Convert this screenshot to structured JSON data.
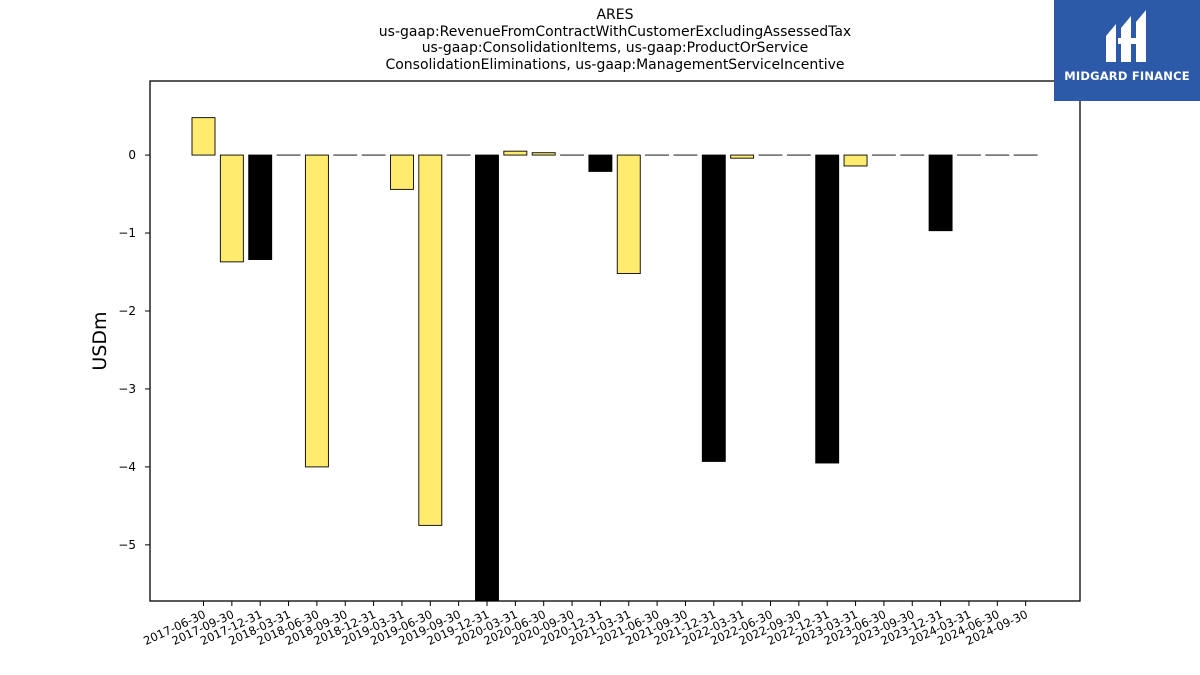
{
  "header": {
    "ticker": "ARES",
    "lines": [
      "us-gaap:RevenueFromContractWithCustomerExcludingAssessedTax",
      "us-gaap:ConsolidationItems, us-gaap:ProductOrService",
      "ConsolidationEliminations, us-gaap:ManagementServiceIncentive"
    ]
  },
  "logo": {
    "text": "MIDGARD FINANCE",
    "icon": "midgard-logo-icon",
    "background": "#2d5aa8"
  },
  "chart_data": {
    "type": "bar",
    "ylabel": "USDm",
    "xlabel": "",
    "ylim": [
      -5.72,
      0.95
    ],
    "yticks": [
      0,
      -1,
      -2,
      -3,
      -4,
      -5
    ],
    "ytick_labels": [
      "0",
      "−1",
      "−2",
      "−3",
      "−4",
      "−5"
    ],
    "grid": false,
    "legend": "none",
    "colors": {
      "yellow": "#ffec6e",
      "black": "#000000",
      "edge": "#000000"
    },
    "categories": [
      "2017-06-30",
      "2017-09-30",
      "2017-12-31",
      "2018-03-31",
      "2018-06-30",
      "2018-09-30",
      "2018-12-31",
      "2019-03-31",
      "2019-06-30",
      "2019-09-30",
      "2019-12-31",
      "2020-03-31",
      "2020-06-30",
      "2020-09-30",
      "2020-12-31",
      "2021-03-31",
      "2021-06-30",
      "2021-09-30",
      "2021-12-31",
      "2022-03-31",
      "2022-06-30",
      "2022-09-30",
      "2022-12-31",
      "2023-03-31",
      "2023-06-30",
      "2023-09-30",
      "2023-12-31",
      "2024-03-31",
      "2024-06-30",
      "2024-09-30"
    ],
    "values": [
      0.48,
      -1.37,
      -1.34,
      0,
      -4.0,
      0,
      0,
      -0.44,
      -4.75,
      0,
      -5.85,
      0.05,
      0.03,
      0,
      -0.21,
      -1.52,
      0,
      0,
      -3.93,
      -0.04,
      0,
      0,
      -3.95,
      -0.14,
      0,
      0,
      -0.97,
      0,
      0,
      0
    ],
    "bar_colors": [
      "yellow",
      "yellow",
      "black",
      "yellow",
      "yellow",
      "yellow",
      "yellow",
      "yellow",
      "yellow",
      "yellow",
      "black",
      "yellow",
      "yellow",
      "yellow",
      "black",
      "yellow",
      "yellow",
      "yellow",
      "black",
      "yellow",
      "yellow",
      "yellow",
      "black",
      "yellow",
      "yellow",
      "yellow",
      "black",
      "yellow",
      "yellow",
      "yellow"
    ]
  }
}
